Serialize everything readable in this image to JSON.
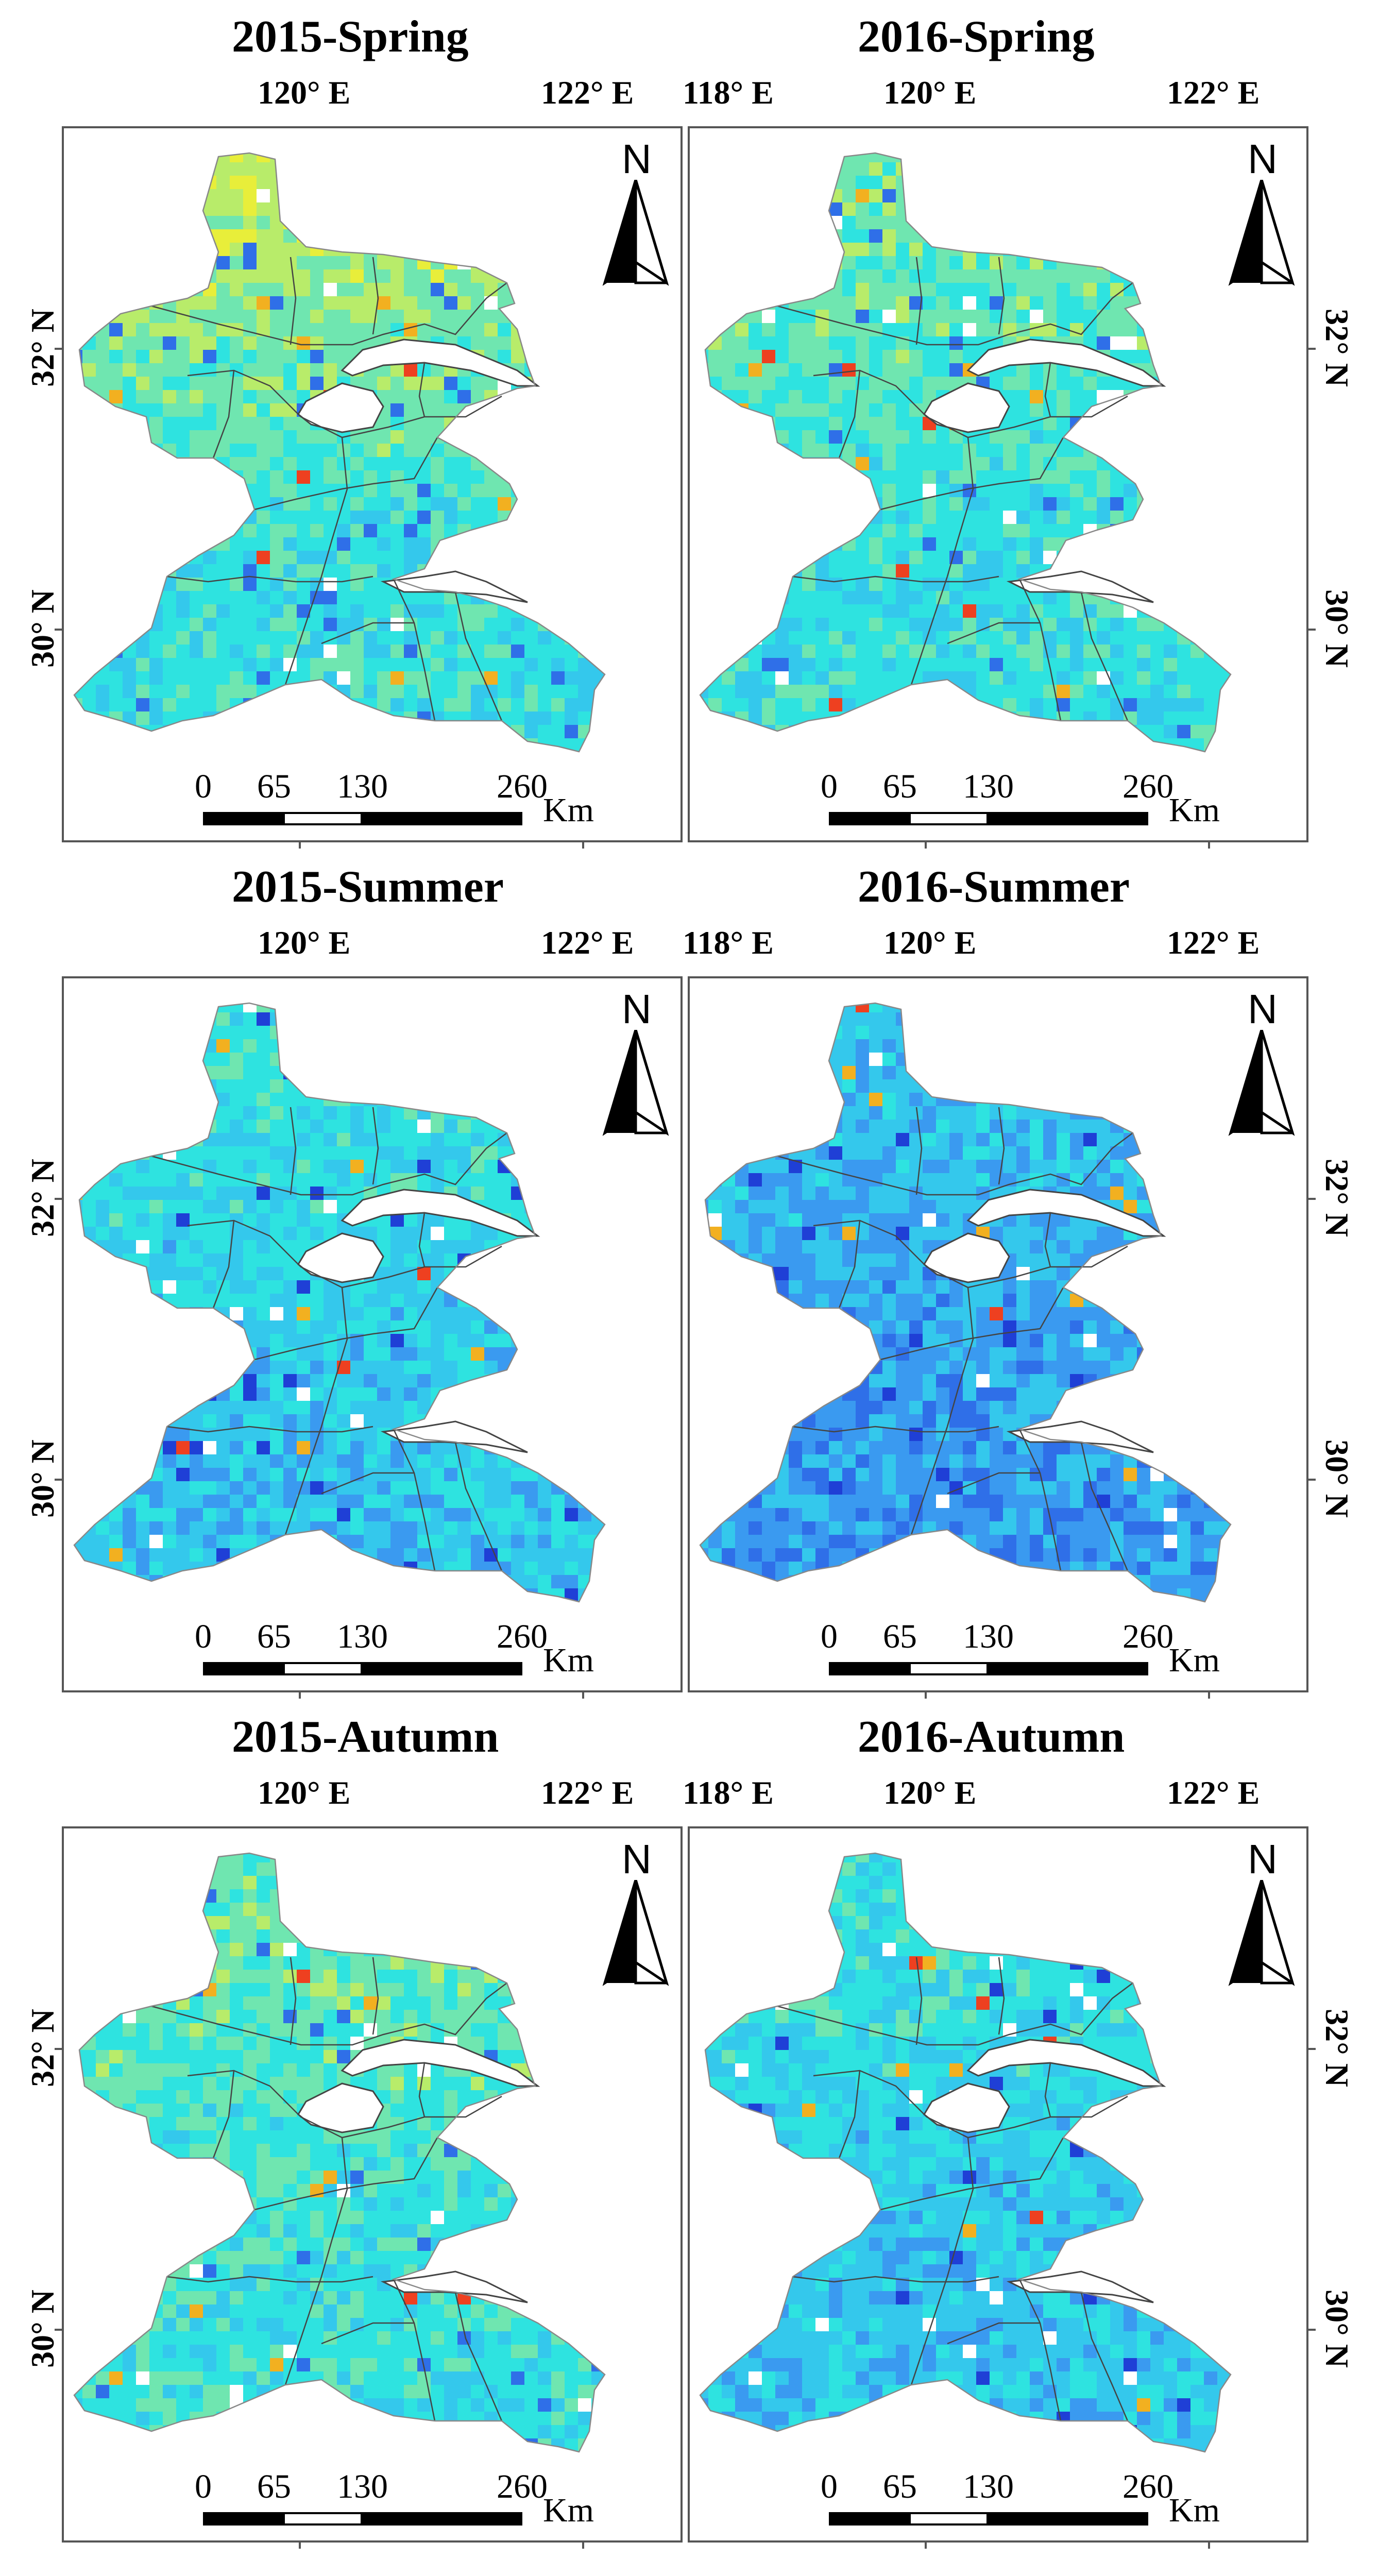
{
  "panels": [
    {
      "title": "2015-Spring",
      "season": "spring",
      "year": "2015",
      "lon_labels": [
        "",
        "120° E",
        "122° E"
      ],
      "tint": "yellow"
    },
    {
      "title": "2016-Spring",
      "season": "spring",
      "year": "2016",
      "lon_labels": [
        "118° E",
        "120° E",
        "122° E"
      ],
      "tint": "cyanyellow"
    },
    {
      "title": "2015-Summer",
      "season": "summer",
      "year": "2015",
      "lon_labels": [
        "",
        "120° E",
        "122° E"
      ],
      "tint": "cyan"
    },
    {
      "title": "2016-Summer",
      "season": "summer",
      "year": "2016",
      "lon_labels": [
        "118° E",
        "120° E",
        "122° E"
      ],
      "tint": "blue"
    },
    {
      "title": "2015-Autumn",
      "season": "autumn",
      "year": "2015",
      "lon_labels": [
        "",
        "120° E",
        "122° E"
      ],
      "tint": "cyanyellow"
    },
    {
      "title": "2016-Autumn",
      "season": "autumn",
      "year": "2016",
      "lon_labels": [
        "118° E",
        "120° E",
        "122° E"
      ],
      "tint": "cyan"
    }
  ],
  "lat_labels": [
    "32° N",
    "30° N"
  ],
  "north_arrow": {
    "letter": "N",
    "icon": "north-arrow-icon"
  },
  "scale_bar": {
    "ticks": [
      "0",
      "65",
      "130",
      "260"
    ],
    "unit": "Km"
  },
  "colors": {
    "frame": "#555555",
    "boundary": "#444444",
    "palette": [
      "#1f3fd6",
      "#2f6fe8",
      "#3a9af0",
      "#34c8ec",
      "#2ee3e0",
      "#6fe6b0",
      "#b8ec6a",
      "#e8ee3a",
      "#f2b020",
      "#ee4020"
    ]
  }
}
